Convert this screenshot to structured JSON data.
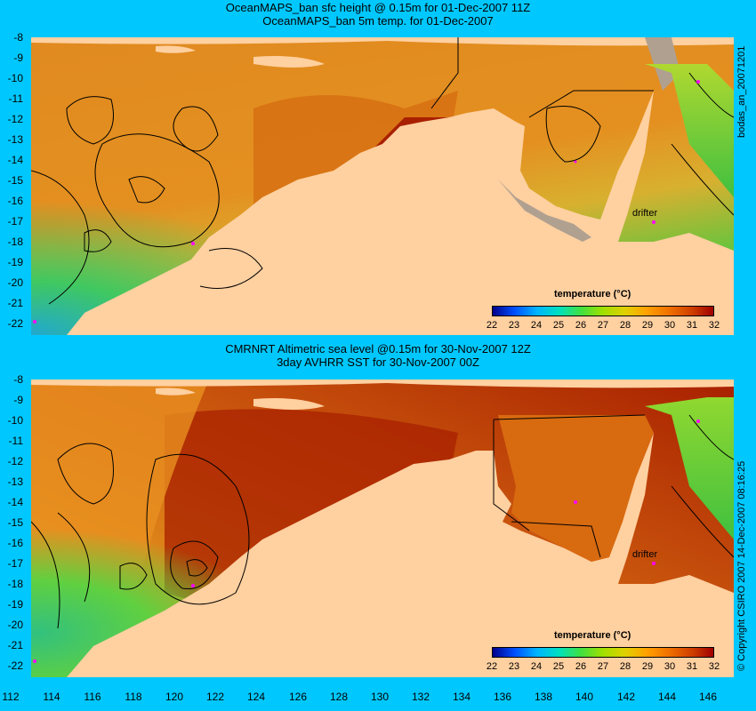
{
  "panels": [
    {
      "title_line1": "OceanMAPS_ban sfc height @ 0.15m for 01-Dec-2007 11Z",
      "title_line2": "OceanMAPS_ban 5m temp. for 01-Dec-2007"
    },
    {
      "title_line1": "CMRNRT Altimetric sea level  @0.15m  for 30-Nov-2007 12Z",
      "title_line2": "3day AVHRR SST for 30-Nov-2007 00Z"
    }
  ],
  "lat_ticks": [
    "-8",
    "-9",
    "-10",
    "-11",
    "-12",
    "-13",
    "-14",
    "-15",
    "-16",
    "-17",
    "-18",
    "-19",
    "-20",
    "-21",
    "-22"
  ],
  "lon_ticks": [
    "112",
    "114",
    "116",
    "118",
    "120",
    "122",
    "124",
    "126",
    "128",
    "130",
    "132",
    "134",
    "136",
    "138",
    "140",
    "142",
    "144",
    "146"
  ],
  "colorbar": {
    "label": "temperature (°C)",
    "ticks": [
      "22",
      "23",
      "24",
      "25",
      "26",
      "27",
      "28",
      "29",
      "30",
      "31",
      "32"
    ],
    "colors": [
      "#00008b",
      "#0050ff",
      "#00b4ff",
      "#00e0c0",
      "#40e040",
      "#a0e000",
      "#e0d000",
      "#ffa000",
      "#f07000",
      "#d04000",
      "#a00000"
    ]
  },
  "drifter_label": "drifter",
  "side_text_top": "bodas_an_20071201",
  "side_text_bottom": "© Copyright CSIRO 2007   14-Dec-2007 08:16:25",
  "colors": {
    "background": "#00c8ff",
    "land": "#ffd0a0",
    "drifter": "#ff00ff",
    "warm_sea": "#e07a10",
    "hot_sea": "#b02000",
    "cool_sea": "#60d040"
  }
}
